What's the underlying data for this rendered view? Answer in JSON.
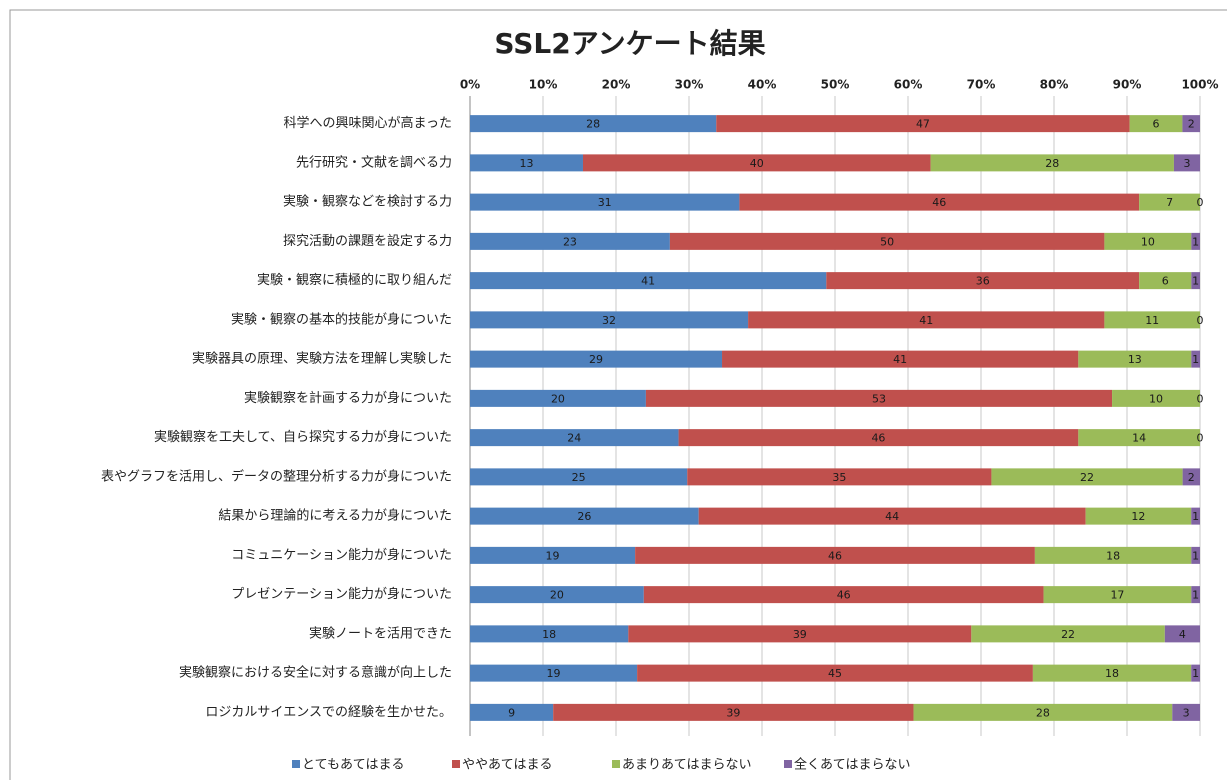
{
  "chart_data": {
    "type": "bar",
    "orientation": "horizontal",
    "stacked": "percent",
    "title": "SSL2アンケート結果",
    "categories": [
      "科学への興味関心が高まった",
      "先行研究・文献を調べる力",
      "実験・観察などを検討する力",
      "探究活動の課題を設定する力",
      "実験・観察に積極的に取り組んだ",
      "実験・観察の基本的技能が身についた",
      "実験器具の原理、実験方法を理解し実験した",
      "実験観察を計画する力が身についた",
      "実験観察を工夫して、自ら探究する力が身についた",
      "表やグラフを活用し、データの整理分析する力が身についた",
      "結果から理論的に考える力が身についた",
      "コミュニケーション能力が身についた",
      "プレゼンテーション能力が身についた",
      "実験ノートを活用できた",
      "実験観察における安全に対する意識が向上した",
      "ロジカルサイエンスでの経験を生かせた。"
    ],
    "series": [
      {
        "name": "とてもあてはまる",
        "color": "#4f81bd",
        "values": [
          28,
          13,
          31,
          23,
          41,
          32,
          29,
          20,
          24,
          25,
          26,
          19,
          20,
          18,
          19,
          9
        ]
      },
      {
        "name": "ややあてはまる",
        "color": "#c0504d",
        "values": [
          47,
          40,
          46,
          50,
          36,
          41,
          41,
          53,
          46,
          35,
          44,
          46,
          46,
          39,
          45,
          39
        ]
      },
      {
        "name": "あまりあてはまらない",
        "color": "#9bbb59",
        "values": [
          6,
          28,
          7,
          10,
          6,
          11,
          13,
          10,
          14,
          22,
          12,
          18,
          17,
          22,
          18,
          28
        ]
      },
      {
        "name": "全くあてはまらない",
        "color": "#8064a2",
        "values": [
          2,
          3,
          0,
          1,
          1,
          0,
          1,
          0,
          0,
          2,
          1,
          1,
          1,
          4,
          1,
          3
        ]
      }
    ],
    "xlim": [
      0,
      100
    ],
    "xticks": [
      {
        "value": 0,
        "label": "0%"
      },
      {
        "value": 10,
        "label": "10%"
      },
      {
        "value": 20,
        "label": "20%"
      },
      {
        "value": 30,
        "label": "30%"
      },
      {
        "value": 40,
        "label": "40%"
      },
      {
        "value": 50,
        "label": "50%"
      },
      {
        "value": 60,
        "label": "60%"
      },
      {
        "value": 70,
        "label": "70%"
      },
      {
        "value": 80,
        "label": "80%"
      },
      {
        "value": 90,
        "label": "90%"
      },
      {
        "value": 100,
        "label": "100%"
      }
    ],
    "grid": true,
    "legend": "bottom"
  }
}
